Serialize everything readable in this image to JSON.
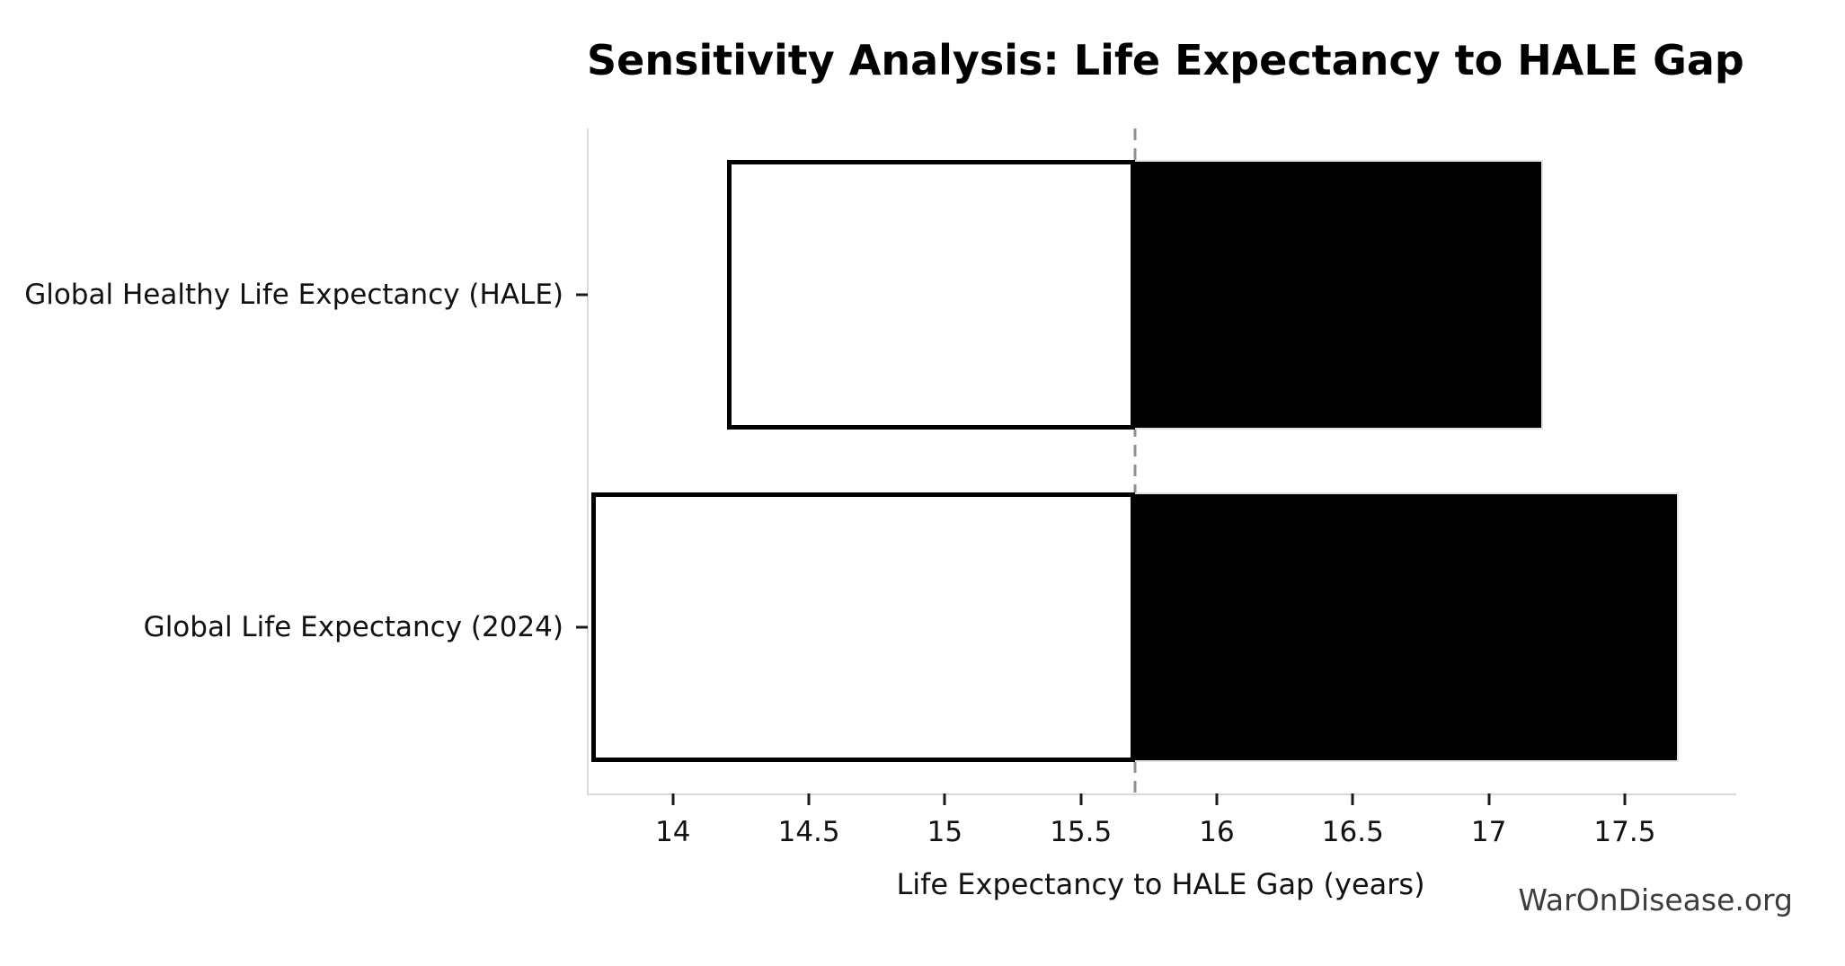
{
  "figure": {
    "watermark": "WarOnDisease.org"
  },
  "chart_data": {
    "type": "bar",
    "orientation": "horizontal",
    "title": "Sensitivity Analysis: Life Expectancy to HALE Gap",
    "xlabel": "Life Expectancy to HALE Gap (years)",
    "ylabel": "",
    "categories": [
      "Global Healthy Life Expectancy (HALE)",
      "Global Life Expectancy (2024)"
    ],
    "baseline": 15.7,
    "bars": [
      {
        "category": "Global Healthy Life Expectancy (HALE)",
        "low": 14.2,
        "high": 17.2
      },
      {
        "category": "Global Life Expectancy (2024)",
        "low": 13.7,
        "high": 17.7
      }
    ],
    "xticks": [
      14,
      14.5,
      15,
      15.5,
      16,
      16.5,
      17,
      17.5
    ],
    "xtick_labels": [
      "14",
      "14.5",
      "15",
      "15.5",
      "16",
      "16.5",
      "17",
      "17.5"
    ],
    "xlim": [
      13.69,
      17.91
    ],
    "grid": false,
    "legend": null,
    "bar_height_fraction": 0.405,
    "colors": {
      "bar_low_fill": "#ffffff",
      "bar_low_edge": "#000000",
      "bar_high_fill": "#000000",
      "bar_high_edge": "#e3e3e3",
      "baseline_line": "#909090",
      "spine": "#d9d9d9",
      "tick": "#1a1a1a",
      "text": "#111111",
      "watermark": "#3d3d3d"
    }
  }
}
